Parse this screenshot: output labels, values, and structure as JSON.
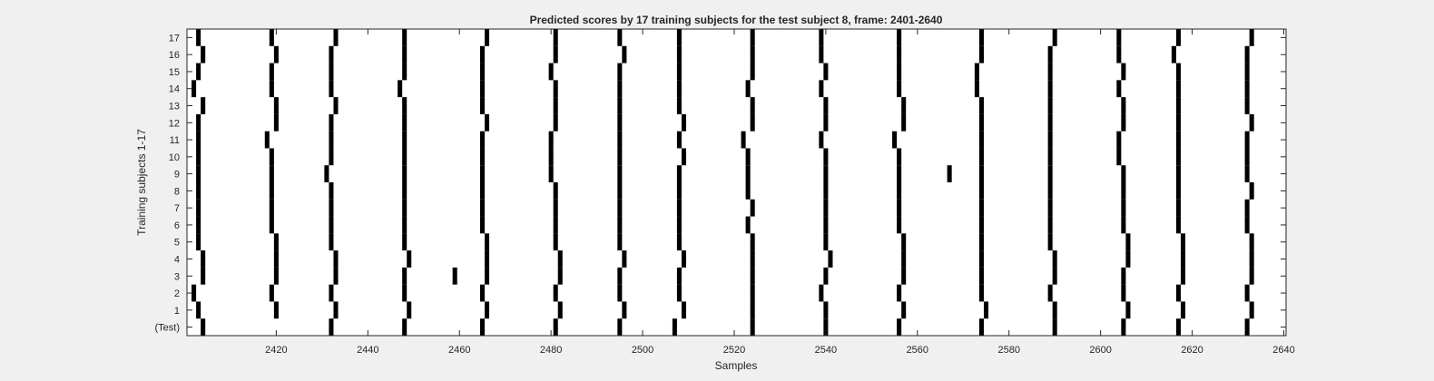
{
  "chart_data": {
    "type": "heatmap",
    "title": "Predicted scores by 17 training subjects for the test subject 8, frame: 2401-2640",
    "xlabel": "Samples",
    "ylabel": "Training subjects 1-17",
    "xlim": [
      2401,
      2640
    ],
    "x_ticks": [
      2420,
      2440,
      2460,
      2480,
      2500,
      2520,
      2540,
      2560,
      2580,
      2600,
      2620,
      2640
    ],
    "y_tick_labels": [
      "17",
      "16",
      "15",
      "14",
      "13",
      "12",
      "11",
      "10",
      "9",
      "8",
      "7",
      "6",
      "5",
      "4",
      "3",
      "2",
      "1",
      "(Test)"
    ],
    "cell_color_on": "#000000",
    "cell_color_off": "#ffffff",
    "rows": [
      {
        "label": "17",
        "marks": [
          2403,
          2419,
          2433,
          2448,
          2466,
          2481,
          2495,
          2508,
          2524,
          2539,
          2556,
          2574,
          2590,
          2604,
          2617,
          2633
        ]
      },
      {
        "label": "16",
        "marks": [
          2404,
          2420,
          2432,
          2448,
          2465,
          2481,
          2496,
          2508,
          2524,
          2539,
          2556,
          2574,
          2589,
          2604,
          2616,
          2632
        ]
      },
      {
        "label": "15",
        "marks": [
          2403,
          2419,
          2432,
          2448,
          2465,
          2480,
          2495,
          2508,
          2524,
          2540,
          2556,
          2573,
          2589,
          2605,
          2617,
          2632
        ]
      },
      {
        "label": "14",
        "marks": [
          2402,
          2419,
          2432,
          2447,
          2465,
          2481,
          2495,
          2508,
          2523,
          2539,
          2556,
          2573,
          2589,
          2604,
          2617,
          2632
        ]
      },
      {
        "label": "13",
        "marks": [
          2404,
          2420,
          2433,
          2448,
          2465,
          2481,
          2495,
          2508,
          2524,
          2540,
          2557,
          2574,
          2589,
          2605,
          2617,
          2632
        ]
      },
      {
        "label": "12",
        "marks": [
          2403,
          2420,
          2432,
          2448,
          2466,
          2481,
          2495,
          2509,
          2524,
          2540,
          2557,
          2574,
          2589,
          2605,
          2617,
          2633
        ]
      },
      {
        "label": "11",
        "marks": [
          2403,
          2418,
          2432,
          2448,
          2465,
          2480,
          2495,
          2508,
          2522,
          2539,
          2555,
          2574,
          2589,
          2604,
          2617,
          2632
        ]
      },
      {
        "label": "10",
        "marks": [
          2403,
          2419,
          2432,
          2448,
          2465,
          2480,
          2495,
          2509,
          2523,
          2540,
          2556,
          2574,
          2589,
          2604,
          2617,
          2632
        ]
      },
      {
        "label": "9",
        "marks": [
          2403,
          2419,
          2431,
          2448,
          2465,
          2480,
          2495,
          2508,
          2523,
          2540,
          2556,
          2567,
          2574,
          2589,
          2605,
          2617,
          2632
        ]
      },
      {
        "label": "8",
        "marks": [
          2403,
          2419,
          2432,
          2448,
          2465,
          2481,
          2495,
          2508,
          2523,
          2540,
          2556,
          2574,
          2589,
          2605,
          2617,
          2633
        ]
      },
      {
        "label": "7",
        "marks": [
          2403,
          2419,
          2432,
          2448,
          2465,
          2481,
          2495,
          2508,
          2524,
          2540,
          2556,
          2574,
          2589,
          2605,
          2617,
          2632
        ]
      },
      {
        "label": "6",
        "marks": [
          2403,
          2419,
          2432,
          2448,
          2465,
          2481,
          2495,
          2508,
          2523,
          2540,
          2556,
          2574,
          2589,
          2605,
          2617,
          2632
        ]
      },
      {
        "label": "5",
        "marks": [
          2403,
          2420,
          2432,
          2448,
          2466,
          2481,
          2495,
          2508,
          2524,
          2540,
          2557,
          2574,
          2589,
          2606,
          2618,
          2633
        ]
      },
      {
        "label": "4",
        "marks": [
          2404,
          2420,
          2433,
          2449,
          2466,
          2482,
          2496,
          2509,
          2524,
          2541,
          2557,
          2574,
          2590,
          2606,
          2618,
          2633
        ]
      },
      {
        "label": "3",
        "marks": [
          2404,
          2420,
          2433,
          2448,
          2459,
          2466,
          2482,
          2495,
          2508,
          2524,
          2540,
          2557,
          2574,
          2590,
          2605,
          2618,
          2633
        ]
      },
      {
        "label": "2",
        "marks": [
          2402,
          2419,
          2432,
          2448,
          2465,
          2481,
          2495,
          2508,
          2524,
          2539,
          2556,
          2574,
          2589,
          2605,
          2617,
          2632
        ]
      },
      {
        "label": "1",
        "marks": [
          2403,
          2420,
          2433,
          2449,
          2466,
          2482,
          2496,
          2509,
          2524,
          2540,
          2557,
          2575,
          2590,
          2606,
          2618,
          2633
        ]
      },
      {
        "label": "(Test)",
        "marks": [
          2404,
          2432,
          2448,
          2465,
          2481,
          2495,
          2507,
          2524,
          2540,
          2556,
          2574,
          2590,
          2605,
          2617,
          2632
        ]
      }
    ]
  }
}
